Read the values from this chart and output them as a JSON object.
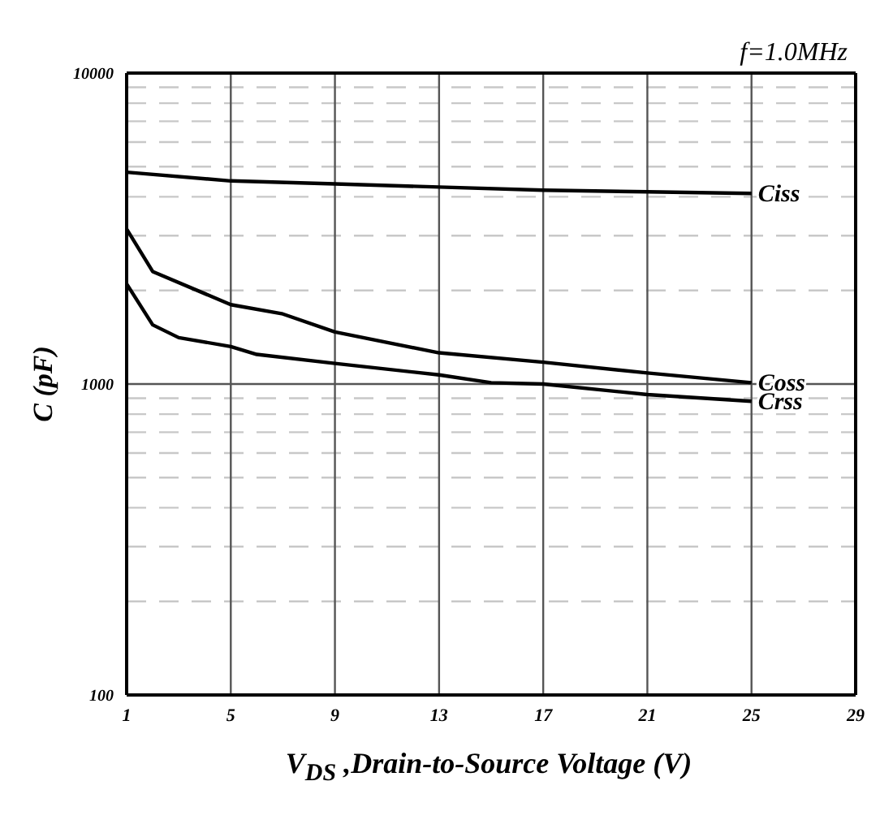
{
  "chart_data": {
    "type": "line",
    "xlabel": "V$_{DS}$ ,Drain-to-Source Voltage (V)",
    "ylabel": "C (pF)",
    "annotations": [
      "f=1.0MHz"
    ],
    "log": "y",
    "xlim": [
      1,
      29
    ],
    "xticks": [
      1,
      5,
      9,
      13,
      17,
      21,
      25,
      29
    ],
    "ylim": [
      100,
      10000
    ],
    "yticks": [
      100,
      {
        "value": 200,
        "label": null
      },
      {
        "value": 300,
        "label": null
      },
      {
        "value": 400,
        "label": null
      },
      {
        "value": 500,
        "label": null
      },
      {
        "value": 600,
        "label": null
      },
      {
        "value": 700,
        "label": null
      },
      {
        "value": 800,
        "label": null
      },
      {
        "value": 900,
        "label": null
      },
      1000,
      {
        "value": 2000,
        "label": null
      },
      {
        "value": 3000,
        "label": null
      },
      {
        "value": 4000,
        "label": null
      },
      {
        "value": 5000,
        "label": null
      },
      {
        "value": 6000,
        "label": null
      },
      {
        "value": 7000,
        "label": null
      },
      {
        "value": 8000,
        "label": null
      },
      {
        "value": 9000,
        "label": null
      },
      10000
    ],
    "grid": true,
    "marker": "none",
    "line_style": "solid",
    "series": [
      {
        "name": "Ciss",
        "color": "#000000",
        "x": [
          1,
          5,
          9,
          13,
          17,
          21,
          25
        ],
        "values": [
          4800,
          4500,
          4400,
          4300,
          4200,
          4150,
          4100
        ]
      },
      {
        "name": "Coss",
        "color": "#000000",
        "x": [
          1,
          2,
          5,
          7,
          9,
          13,
          17,
          21,
          25
        ],
        "values": [
          3150,
          2300,
          1800,
          1680,
          1470,
          1260,
          1175,
          1085,
          1010
        ]
      },
      {
        "name": "Crss",
        "color": "#000000",
        "x": [
          1,
          2,
          3,
          5,
          6,
          9,
          13,
          15,
          17,
          21,
          25
        ],
        "values": [
          2100,
          1550,
          1410,
          1320,
          1245,
          1165,
          1070,
          1010,
          1000,
          925,
          880
        ]
      }
    ]
  }
}
